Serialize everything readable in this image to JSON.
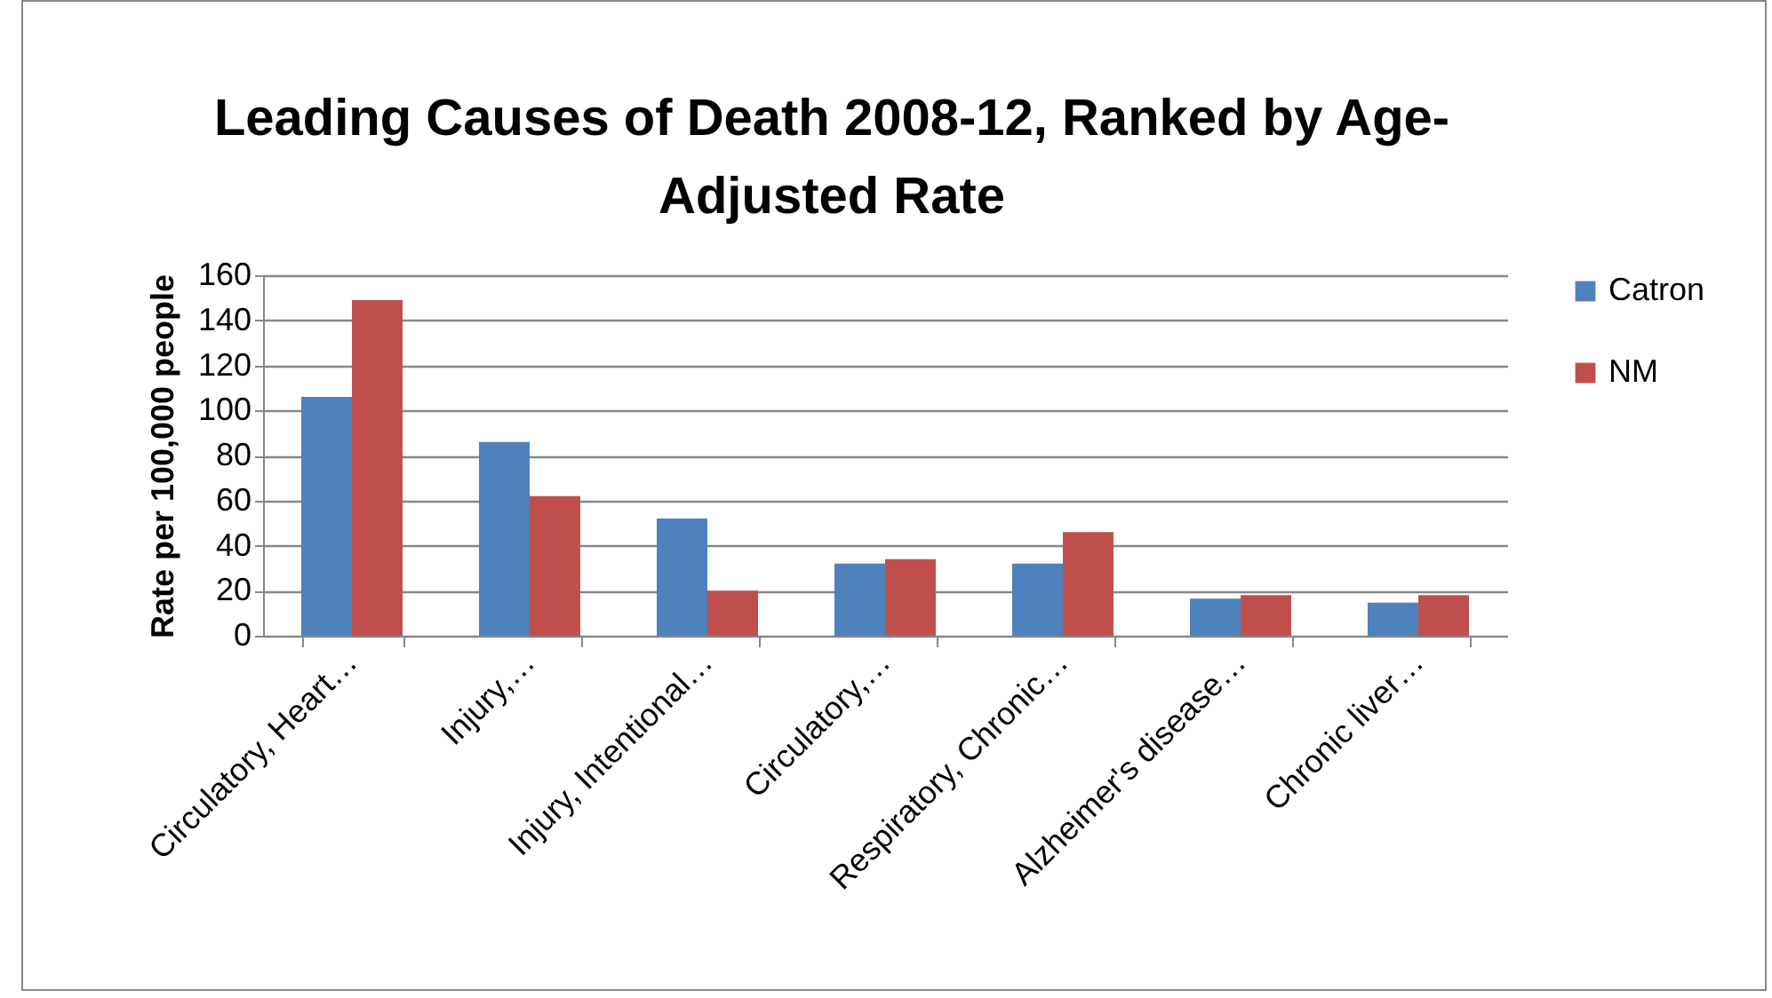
{
  "chart_data": {
    "type": "bar",
    "title": "Leading Causes of Death 2008-12, Ranked by Age-Adjusted Rate",
    "ylabel": "Rate per 100,000 people",
    "categories": [
      "Circulatory, Heart…",
      "Injury,…",
      "Injury, Intentional…",
      "Circulatory,…",
      "Respiratory, Chronic…",
      "Alzheimer's disease…",
      "Chronic liver…"
    ],
    "series": [
      {
        "name": "Catron",
        "color": "#4f81bd",
        "values": [
          106,
          86,
          52,
          32,
          32,
          16.5,
          14.7
        ]
      },
      {
        "name": "NM",
        "color": "#c0504d",
        "values": [
          149,
          62,
          20,
          34,
          46,
          18,
          18
        ]
      }
    ],
    "ylim": [
      0,
      160
    ],
    "yticks": [
      0,
      20,
      40,
      60,
      80,
      100,
      120,
      140,
      160
    ],
    "grid": "y",
    "legend": "right"
  }
}
